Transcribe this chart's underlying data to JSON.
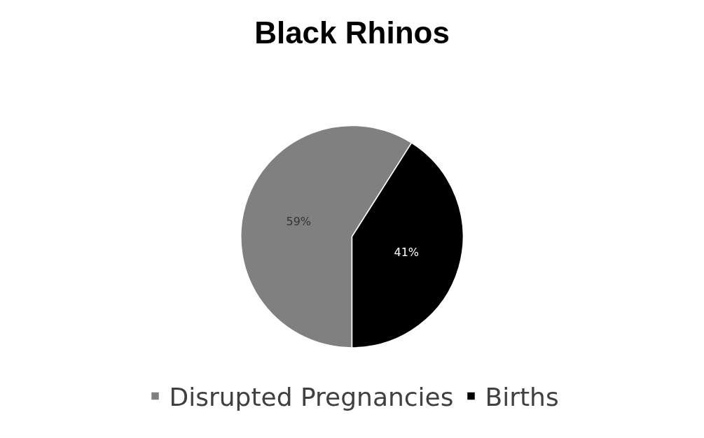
{
  "chart_data": {
    "type": "pie",
    "title": "Black Rhinos",
    "categories": [
      "Disrupted Pregnancies",
      "Births"
    ],
    "values": [
      59,
      41
    ],
    "colors": [
      "#808080",
      "#000000"
    ],
    "value_labels": [
      "59%",
      "41%"
    ],
    "legend": "bottom"
  }
}
